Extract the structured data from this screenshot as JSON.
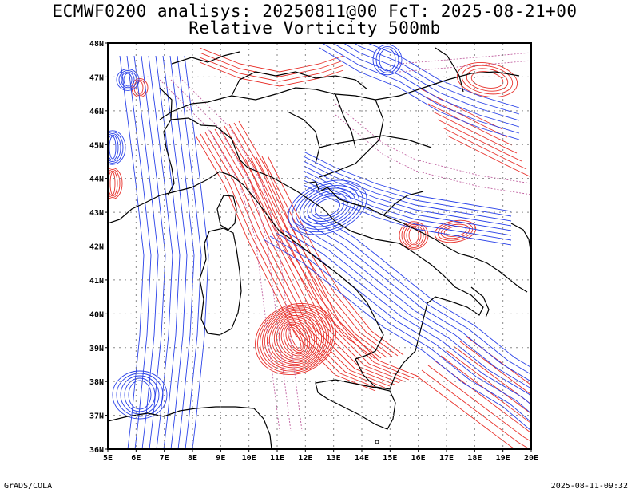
{
  "header": {
    "title_line1": "ECMWF0200 analisys: 20250811@00 FcT: 2025-08-21+00",
    "title_line2": "Relative Vorticity 500mb"
  },
  "map": {
    "lon_range": [
      5,
      20
    ],
    "lat_range": [
      36,
      48
    ],
    "lon_labels": [
      "5E",
      "6E",
      "7E",
      "8E",
      "9E",
      "10E",
      "11E",
      "12E",
      "13E",
      "14E",
      "15E",
      "16E",
      "17E",
      "18E",
      "19E",
      "20E"
    ],
    "lat_labels": [
      "36N",
      "37N",
      "38N",
      "39N",
      "40N",
      "41N",
      "42N",
      "43N",
      "44N",
      "45N",
      "46N",
      "47N",
      "48N"
    ],
    "gridlines": "dotted",
    "colors": {
      "positive": "#e8302a",
      "negative": "#2840e8",
      "zero": "#c060a0",
      "coast": "#000000"
    }
  },
  "footer": {
    "credit": "GrADS/COLA",
    "timestamp": "2025-08-11-09:32"
  }
}
